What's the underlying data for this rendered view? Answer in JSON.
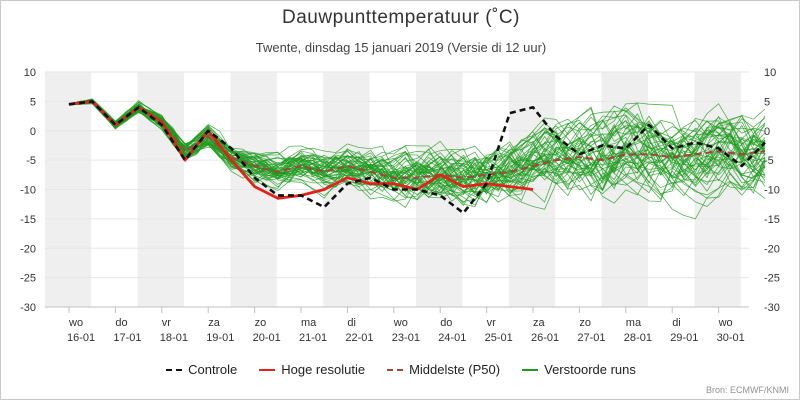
{
  "title": "Dauwpunttemperatuur (˚C)",
  "subtitle": "Twente, dinsdag 15 januari 2019 (Versie di 12 uur)",
  "credits": "Bron: ECMWF/KNMI",
  "colors": {
    "controle": "#111111",
    "hoge_resolutie": "#e2231a",
    "middelste": "#a0483c",
    "verstoorde": "#1e9b1e",
    "weekend_band": "#efefef",
    "grid": "#e6e6e6"
  },
  "legend": [
    {
      "label": "Controle",
      "color": "#111111",
      "style": "dashed"
    },
    {
      "label": "Hoge resolutie",
      "color": "#e2231a",
      "style": "solid"
    },
    {
      "label": "Middelste (P50)",
      "color": "#a0483c",
      "style": "dashed"
    },
    {
      "label": "Verstoorde runs",
      "color": "#1e9b1e",
      "style": "solid"
    }
  ],
  "chart_data": {
    "type": "line",
    "title": "Dauwpunttemperatuur (˚C)",
    "subtitle": "Twente, dinsdag 15 januari 2019 (Versie di 12 uur)",
    "ylim": [
      -30,
      10
    ],
    "yticks": [
      10,
      5,
      0,
      -5,
      -10,
      -15,
      -20,
      -25,
      -30
    ],
    "xlim": [
      0,
      15
    ],
    "x_ticks": [
      {
        "day": "wo",
        "date": "16-01"
      },
      {
        "day": "do",
        "date": "17-01"
      },
      {
        "day": "vr",
        "date": "18-01"
      },
      {
        "day": "za",
        "date": "19-01"
      },
      {
        "day": "zo",
        "date": "20-01"
      },
      {
        "day": "ma",
        "date": "21-01"
      },
      {
        "day": "di",
        "date": "22-01"
      },
      {
        "day": "wo",
        "date": "23-01"
      },
      {
        "day": "do",
        "date": "24-01"
      },
      {
        "day": "vr",
        "date": "25-01"
      },
      {
        "day": "za",
        "date": "26-01"
      },
      {
        "day": "zo",
        "date": "27-01"
      },
      {
        "day": "ma",
        "date": "28-01"
      },
      {
        "day": "di",
        "date": "29-01"
      },
      {
        "day": "wo",
        "date": "30-01"
      }
    ],
    "x_values_note_units": "days",
    "series": [
      {
        "name": "Controle",
        "style": "dashed",
        "color": "#111111",
        "x": [
          0,
          0.5,
          1,
          1.5,
          2,
          2.5,
          3,
          3.5,
          4,
          4.5,
          5,
          5.5,
          6,
          6.5,
          7,
          7.5,
          8,
          8.5,
          9,
          9.5,
          10,
          10.5,
          11,
          11.5,
          12,
          12.5,
          13,
          13.5,
          14,
          14.5,
          15
        ],
        "values": [
          4.5,
          5.0,
          1.0,
          4.0,
          1.0,
          -5.0,
          0.0,
          -3.0,
          -8.0,
          -11.0,
          -11.0,
          -13.0,
          -9.0,
          -8.0,
          -10.0,
          -10.0,
          -11.0,
          -14.0,
          -9.0,
          3.0,
          4.0,
          -1.0,
          -4.0,
          -2.5,
          -3.0,
          1.0,
          -3.0,
          -2.0,
          -3.0,
          -6.0,
          -2.0
        ]
      },
      {
        "name": "Hoge resolutie",
        "style": "solid",
        "color": "#e2231a",
        "x": [
          0,
          0.5,
          1,
          1.5,
          2,
          2.5,
          3,
          3.5,
          4,
          4.5,
          5,
          5.5,
          6,
          6.5,
          7,
          7.5,
          8,
          8.5,
          9,
          9.5,
          10
        ],
        "values": [
          4.5,
          5.0,
          1.0,
          4.0,
          1.5,
          -5.0,
          0.0,
          -5.0,
          -9.5,
          -11.5,
          -11.0,
          -10.0,
          -8.0,
          -9.0,
          -9.0,
          -10.0,
          -7.5,
          -9.5,
          -9.0,
          -9.5,
          -10.0
        ]
      },
      {
        "name": "Middelste (P50)",
        "style": "dashed",
        "color": "#a0483c",
        "x": [
          0,
          0.5,
          1,
          1.5,
          2,
          2.5,
          3,
          3.5,
          4,
          4.5,
          5,
          5.5,
          6,
          6.5,
          7,
          7.5,
          8,
          8.5,
          9,
          9.5,
          10,
          10.5,
          11,
          11.5,
          12,
          12.5,
          13,
          13.5,
          14,
          14.5,
          15
        ],
        "values": [
          4.5,
          5.0,
          1.0,
          4.0,
          1.5,
          -3.5,
          -1.0,
          -4.5,
          -6.0,
          -7.0,
          -6.0,
          -7.0,
          -6.0,
          -7.0,
          -8.0,
          -8.0,
          -7.5,
          -8.0,
          -7.5,
          -7.0,
          -6.0,
          -5.0,
          -4.5,
          -5.0,
          -4.0,
          -4.0,
          -4.5,
          -4.0,
          -3.5,
          -4.0,
          -3.5
        ]
      }
    ]
  }
}
